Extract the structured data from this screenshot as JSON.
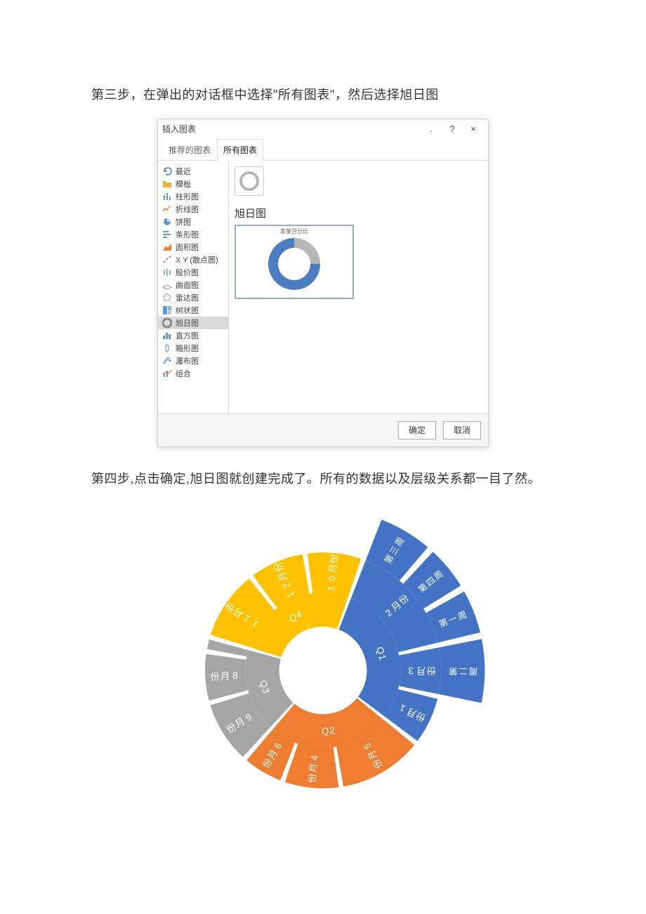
{
  "step3_text": "第三步，在弹出的对话框中选择\"所有图表\"，然后选择旭日图",
  "step4_text": "第四步,点击确定,旭日图就创建完成了。所有的数据以及层级关系都一目了然。",
  "dialog": {
    "title": "插入图表",
    "help": "?",
    "close": "×",
    "dot": ".",
    "tabs": {
      "recommended": "推荐的图表",
      "all": "所有图表"
    },
    "chart_types": [
      {
        "label": "最近",
        "icon": "undo",
        "color": "#3b7ac0"
      },
      {
        "label": "模板",
        "icon": "folder",
        "color": "#e8b44a"
      },
      {
        "label": "柱形图",
        "icon": "bar",
        "color": "#5b9bd5"
      },
      {
        "label": "折线图",
        "icon": "line",
        "color": "#ed7d31"
      },
      {
        "label": "饼图",
        "icon": "pie",
        "color": "#5b9bd5"
      },
      {
        "label": "条形图",
        "icon": "hbar",
        "color": "#5b9bd5"
      },
      {
        "label": "面积图",
        "icon": "area",
        "color": "#ed7d31"
      },
      {
        "label": "X Y (散点图)",
        "icon": "scatter",
        "color": "#999"
      },
      {
        "label": "股价图",
        "icon": "stock",
        "color": "#5b9bd5"
      },
      {
        "label": "曲面图",
        "icon": "surface",
        "color": "#999"
      },
      {
        "label": "雷达图",
        "icon": "radar",
        "color": "#999"
      },
      {
        "label": "树状图",
        "icon": "tree",
        "color": "#5b9bd5"
      },
      {
        "label": "旭日图",
        "icon": "sunburst",
        "color": "#888",
        "selected": true
      },
      {
        "label": "直方图",
        "icon": "histo",
        "color": "#5b9bd5"
      },
      {
        "label": "箱形图",
        "icon": "box",
        "color": "#5b9bd5"
      },
      {
        "label": "瀑布图",
        "icon": "waterfall",
        "color": "#5b9bd5"
      },
      {
        "label": "组合",
        "icon": "combo",
        "color": "#5b9bd5"
      }
    ],
    "main_title": "旭日图",
    "preview_title": "度量百分比",
    "ok": "确定",
    "cancel": "取消"
  },
  "sunburst": {
    "type": "sunburst",
    "background": "#ffffff",
    "gap_color": "#ffffff",
    "gap_width": 2,
    "colors": {
      "q1": "#4473c5",
      "q2": "#ee7d31",
      "q3": "#a5a5a5",
      "q4": "#ffc100"
    },
    "inner_r": 65,
    "ring1_r": 115,
    "ring2_r": 175,
    "ring3_r": 240,
    "ring1": [
      {
        "key": "Q1",
        "value": 30,
        "color": "q1"
      },
      {
        "key": "Q2",
        "value": 26,
        "color": "q2"
      },
      {
        "key": "Q3",
        "value": 18,
        "color": "q3"
      },
      {
        "key": "Q4",
        "value": 26,
        "color": "q4"
      }
    ],
    "ring2": [
      {
        "key": "2月份",
        "parent": "Q1",
        "value": 16,
        "color": "q1",
        "rot": true
      },
      {
        "key": "3月份",
        "parent": "Q1",
        "value": 7,
        "color": "q1",
        "rot": true
      },
      {
        "key": "1月份",
        "parent": "Q1",
        "value": 7,
        "color": "q1",
        "rot": true
      },
      {
        "key": "5月份",
        "parent": "Q2",
        "value": 12,
        "color": "q2",
        "rot": true
      },
      {
        "key": "4月份",
        "parent": "Q2",
        "value": 8,
        "color": "q2",
        "rot": true
      },
      {
        "key": "6月份",
        "parent": "Q2",
        "value": 6,
        "color": "q2",
        "rot": true
      },
      {
        "key": "9月份",
        "parent": "Q3",
        "value": 9,
        "color": "q3",
        "rot": true
      },
      {
        "key": "8月份",
        "parent": "Q3",
        "value": 7,
        "color": "q3",
        "rot": true
      },
      {
        "key": "",
        "parent": "Q3",
        "value": 2,
        "color": "q3",
        "rot": true
      },
      {
        "key": "11月份",
        "parent": "Q4",
        "value": 10,
        "color": "q4",
        "rot": true
      },
      {
        "key": "12月份",
        "parent": "Q4",
        "value": 8,
        "color": "q4",
        "rot": true
      },
      {
        "key": "10月份",
        "parent": "Q4",
        "value": 8,
        "color": "q4",
        "rot": true
      }
    ],
    "ring3": [
      {
        "key": "第三周",
        "parent": "2月份",
        "value": 6,
        "color": "q1"
      },
      {
        "key": "第四周",
        "parent": "2月份",
        "value": 5,
        "color": "q1"
      },
      {
        "key": "第一周",
        "parent": "2月份",
        "value": 5,
        "color": "q1"
      },
      {
        "key": "第二周",
        "parent": "3月份",
        "value": 7,
        "color": "q1",
        "partial": true
      }
    ]
  }
}
